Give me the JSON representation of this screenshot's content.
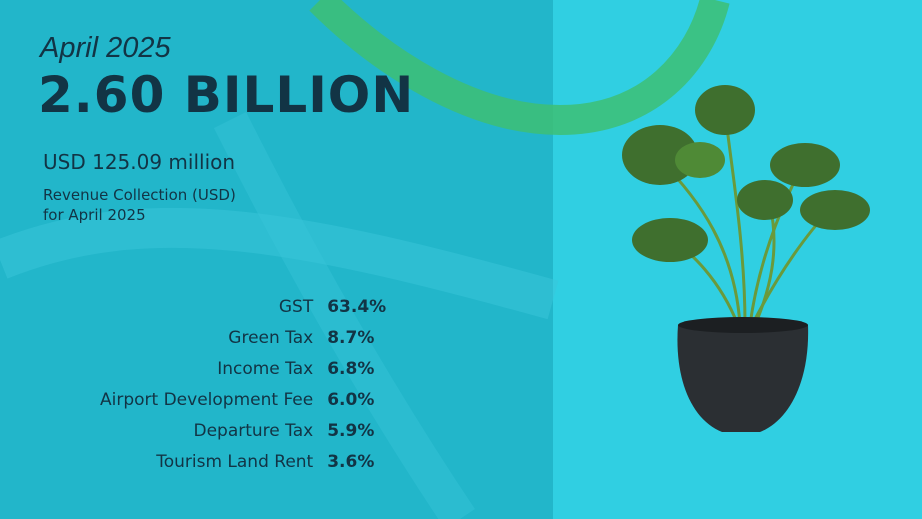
{
  "header": {
    "period": "April 2025",
    "headline": "2.60 BILLION"
  },
  "summary": {
    "amount": "USD 125.09 million",
    "caption": [
      "Revenue Collection (USD)",
      "for April 2025"
    ]
  },
  "breakdown": {
    "rows": [
      [
        "GST",
        "63.4%"
      ],
      [
        "Green Tax",
        "8.7%"
      ],
      [
        "Income Tax",
        "6.8%"
      ],
      [
        "Airport Development Fee",
        "6.0%"
      ],
      [
        "Departure Tax",
        "5.9%"
      ],
      [
        "Tourism Land Rent",
        "3.6%"
      ]
    ]
  }
}
